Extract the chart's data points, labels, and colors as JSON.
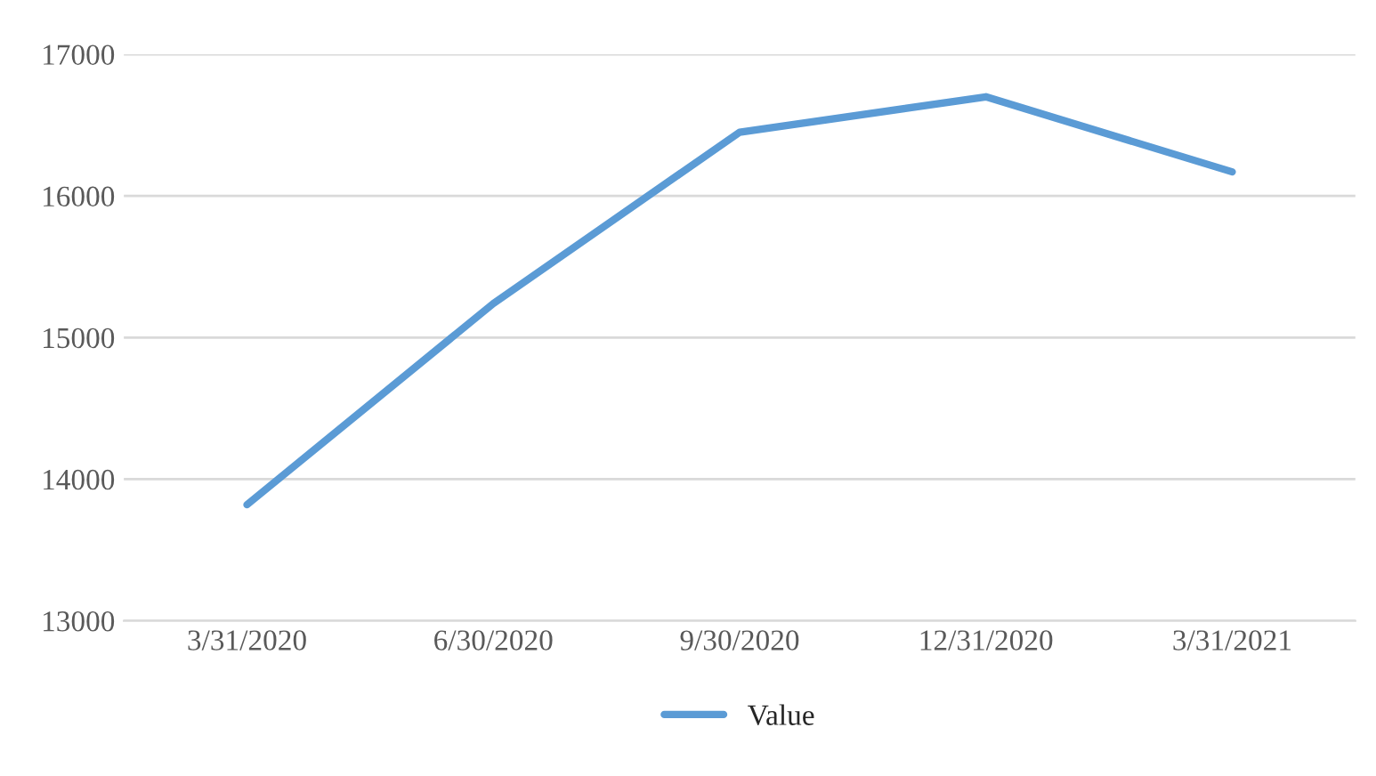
{
  "chart_data": {
    "type": "line",
    "categories": [
      "3/31/2020",
      "6/30/2020",
      "9/30/2020",
      "12/31/2020",
      "3/31/2021"
    ],
    "series": [
      {
        "name": "Value",
        "color": "#5b9bd5",
        "values": [
          13820,
          15240,
          16450,
          16700,
          16170
        ]
      }
    ],
    "ylim": [
      13000,
      17000
    ],
    "yticks": [
      13000,
      14000,
      15000,
      16000,
      17000
    ],
    "grid": "y",
    "legend": "bottom",
    "marker": "none",
    "line_style": "solid"
  }
}
